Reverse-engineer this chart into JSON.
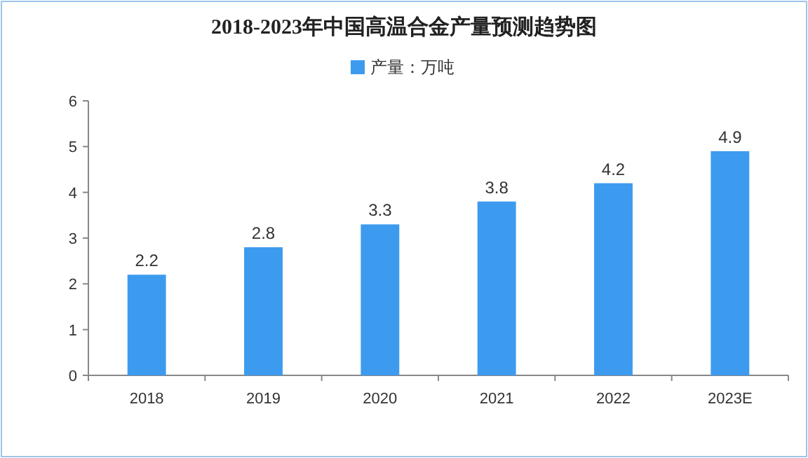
{
  "chart_data": {
    "type": "bar",
    "title": "2018-2023年中国高温合金产量预测趋势图",
    "categories": [
      "2018",
      "2019",
      "2020",
      "2021",
      "2022",
      "2023E"
    ],
    "series": [
      {
        "name": "产量：万吨",
        "color": "#3d9bef",
        "values": [
          2.2,
          2.8,
          3.3,
          3.8,
          4.2,
          4.9
        ]
      }
    ],
    "ylim": [
      0,
      6
    ],
    "yticks": [
      0,
      1,
      2,
      3,
      4,
      5,
      6
    ],
    "grid": false,
    "legend": "top",
    "data_labels": true
  }
}
